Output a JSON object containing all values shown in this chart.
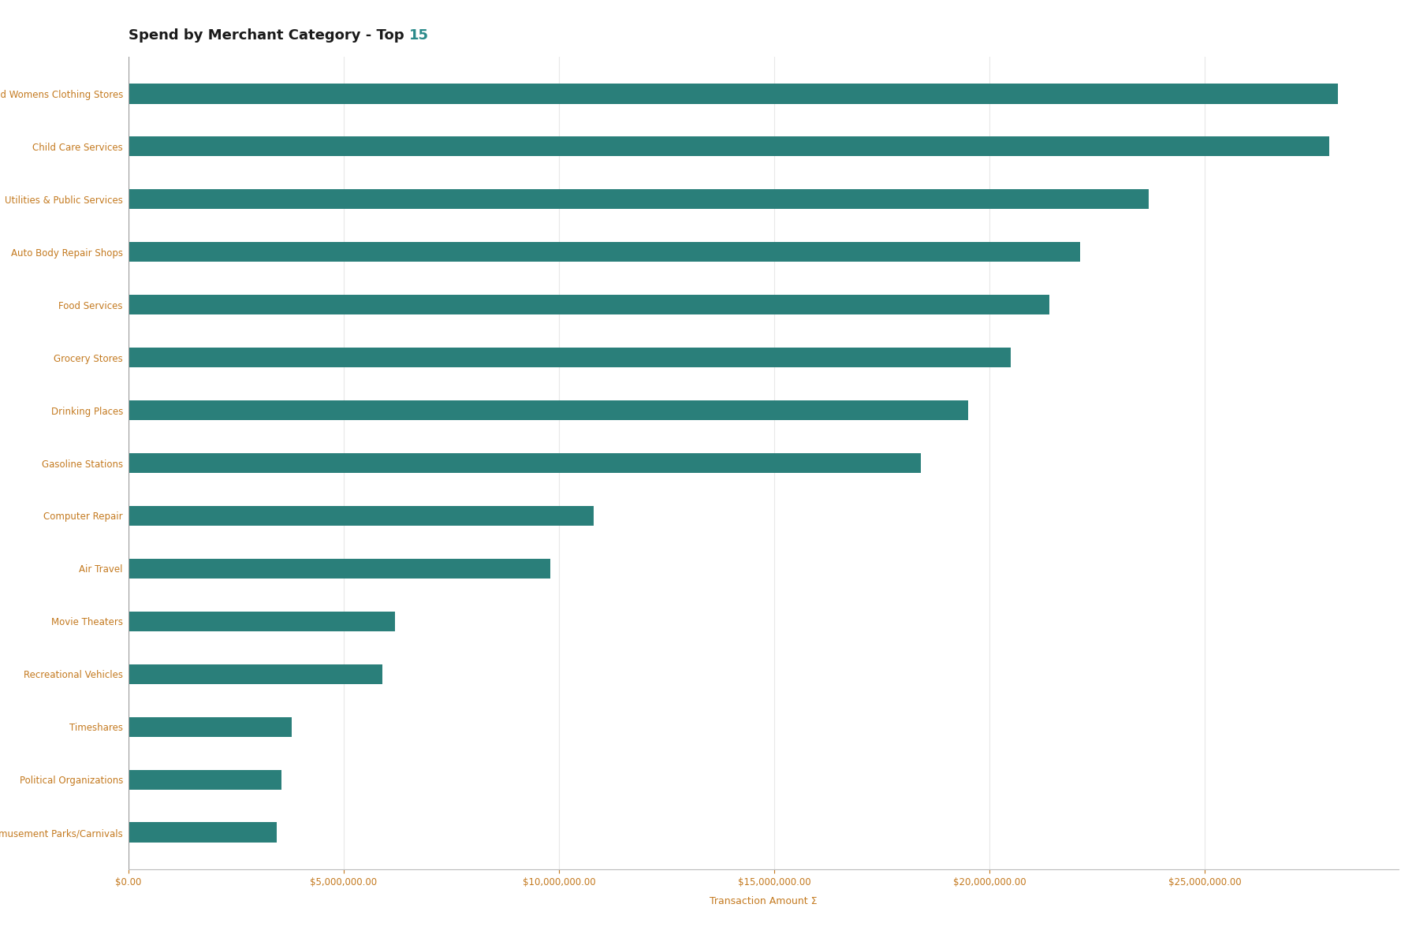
{
  "title_part1": "Spend by Merchant Category - Top ",
  "title_part2": "15",
  "title_color1": "#1a1a1a",
  "title_color2": "#2a8a8a",
  "xlabel": "Transaction Amount Σ",
  "categories": [
    "Mens and Womens Clothing Stores",
    "Child Care Services",
    "Utilities & Public Services",
    "Auto Body Repair Shops",
    "Food Services",
    "Grocery Stores",
    "Drinking Places",
    "Gasoline Stations",
    "Computer Repair",
    "Air Travel",
    "Movie Theaters",
    "Recreational Vehicles",
    "Timeshares",
    "Political Organizations",
    "Amusement Parks/Carnivals"
  ],
  "values": [
    28100000,
    27900000,
    23700000,
    22100000,
    21400000,
    20500000,
    19500000,
    18400000,
    10800000,
    9800000,
    6200000,
    5900000,
    3800000,
    3550000,
    3450000
  ],
  "bar_color": "#2a7f7a",
  "background_color": "#ffffff",
  "xlim_max": 29500000,
  "xtick_values": [
    0,
    5000000,
    10000000,
    15000000,
    20000000,
    25000000
  ],
  "grid_color": "#e8e8e8",
  "text_color": "#c47a20",
  "title_fontsize": 13,
  "axis_label_fontsize": 9,
  "tick_fontsize": 8.5,
  "category_fontsize": 8.5,
  "bar_height": 0.38
}
